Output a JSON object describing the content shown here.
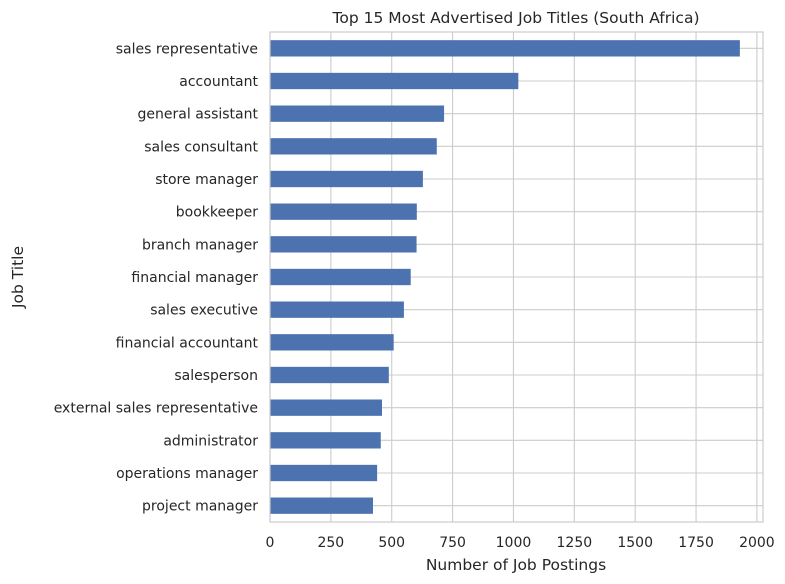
{
  "chart_data": {
    "type": "bar",
    "orientation": "horizontal",
    "title": "Top 15 Most Advertised Job Titles (South Africa)",
    "xlabel": "Number of Job Postings",
    "ylabel": "Job Title",
    "categories": [
      "sales representative",
      "accountant",
      "general assistant",
      "sales consultant",
      "store manager",
      "bookkeeper",
      "branch manager",
      "financial manager",
      "sales executive",
      "financial accountant",
      "salesperson",
      "external sales representative",
      "administrator",
      "operations manager",
      "project manager"
    ],
    "values": [
      1930,
      1020,
      715,
      685,
      628,
      603,
      602,
      578,
      550,
      508,
      488,
      460,
      455,
      440,
      423
    ],
    "xlim": [
      0,
      2025
    ],
    "xticks": [
      0,
      250,
      500,
      750,
      1000,
      1250,
      1500,
      1750,
      2000
    ],
    "xtick_labels": [
      "0",
      "250",
      "500",
      "750",
      "1000",
      "1250",
      "1500",
      "1750",
      "2000"
    ],
    "grid": true,
    "legend": "none",
    "bar_color": "#4c72b0",
    "grid_color": "#cccccc"
  }
}
